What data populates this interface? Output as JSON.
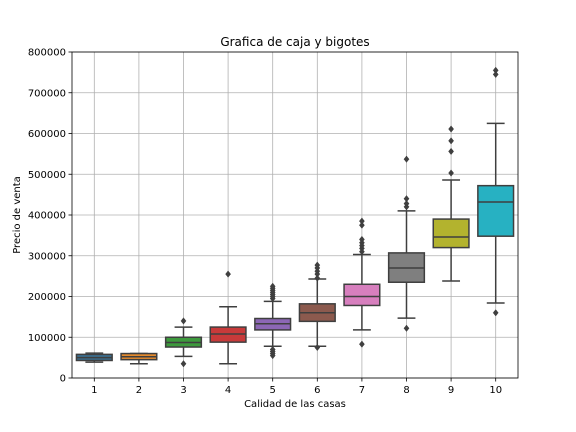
{
  "chart_data": {
    "type": "box",
    "title": "Grafica de caja y bigotes",
    "xlabel": "Calidad de las casas",
    "ylabel": "Precio de venta",
    "ylim": [
      0,
      800000
    ],
    "yticks": [
      0,
      100000,
      200000,
      300000,
      400000,
      500000,
      600000,
      700000,
      800000
    ],
    "ytick_labels": [
      "0",
      "100000",
      "200000",
      "300000",
      "400000",
      "500000",
      "600000",
      "700000",
      "800000"
    ],
    "grid": true,
    "categories": [
      "1",
      "2",
      "3",
      "4",
      "5",
      "6",
      "7",
      "8",
      "9",
      "10"
    ],
    "boxes": [
      {
        "category": "1",
        "whisker_low": 39000,
        "q1": 43000,
        "median": 50000,
        "q3": 58000,
        "whisker_high": 61000,
        "outliers": [],
        "color": "#3b6e8f"
      },
      {
        "category": "2",
        "whisker_low": 35000,
        "q1": 45000,
        "median": 52000,
        "q3": 60000,
        "whisker_high": 60000,
        "outliers": [],
        "color": "#e58a2c"
      },
      {
        "category": "3",
        "whisker_low": 53000,
        "q1": 76000,
        "median": 87000,
        "q3": 100000,
        "whisker_high": 125000,
        "outliers": [
          35000,
          140000
        ],
        "color": "#3d9a3d"
      },
      {
        "category": "4",
        "whisker_low": 35000,
        "q1": 88000,
        "median": 108000,
        "q3": 125000,
        "whisker_high": 175000,
        "outliers": [
          255000
        ],
        "color": "#c83a3a"
      },
      {
        "category": "5",
        "whisker_low": 78000,
        "q1": 118000,
        "median": 133000,
        "q3": 146000,
        "whisker_high": 188000,
        "outliers": [
          55000,
          60000,
          65000,
          70000,
          195000,
          200000,
          205000,
          210000,
          215000,
          220000,
          225000
        ],
        "color": "#8c67b5"
      },
      {
        "category": "6",
        "whisker_low": 78000,
        "q1": 139000,
        "median": 160000,
        "q3": 182000,
        "whisker_high": 243000,
        "outliers": [
          75000,
          245000,
          255000,
          262000,
          270000,
          277000
        ],
        "color": "#8c5a4e"
      },
      {
        "category": "7",
        "whisker_low": 118000,
        "q1": 178000,
        "median": 200000,
        "q3": 230000,
        "whisker_high": 303000,
        "outliers": [
          83000,
          310000,
          318000,
          325000,
          332000,
          340000,
          375000,
          385000
        ],
        "color": "#d77fbe"
      },
      {
        "category": "8",
        "whisker_low": 147000,
        "q1": 235000,
        "median": 270000,
        "q3": 307000,
        "whisker_high": 410000,
        "outliers": [
          122000,
          420000,
          428000,
          440000,
          537000
        ],
        "color": "#7f7f7f"
      },
      {
        "category": "9",
        "whisker_low": 238000,
        "q1": 320000,
        "median": 346000,
        "q3": 390000,
        "whisker_high": 486000,
        "outliers": [
          503000,
          556000,
          582000,
          611000
        ],
        "color": "#b3b32e"
      },
      {
        "category": "10",
        "whisker_low": 184000,
        "q1": 348000,
        "median": 432000,
        "q3": 472000,
        "whisker_high": 625000,
        "outliers": [
          160000,
          745000,
          755000
        ],
        "color": "#27b1c2"
      }
    ]
  }
}
